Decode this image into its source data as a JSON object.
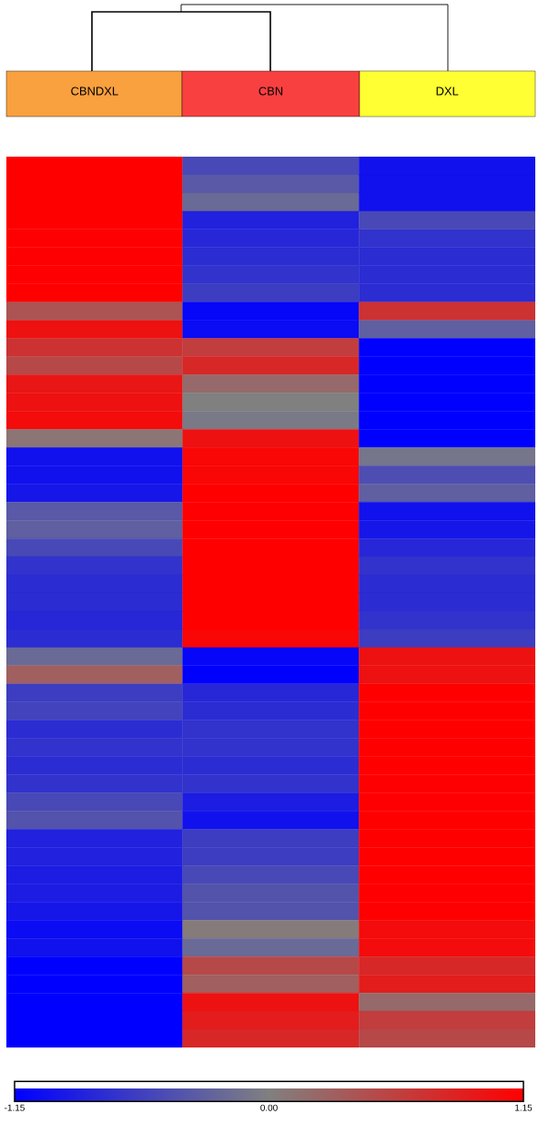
{
  "chart_data": {
    "type": "heatmap",
    "categories": [
      "CBNDXL",
      "CBN",
      "DXL"
    ],
    "y_categories": [
      null,
      null,
      null,
      null,
      null,
      null,
      null,
      null,
      null,
      null,
      null,
      null,
      null,
      null,
      null,
      null,
      null,
      null,
      null,
      null,
      null,
      null,
      null,
      null,
      null,
      null,
      null,
      null,
      null,
      null,
      null,
      null,
      null,
      null,
      null,
      null,
      null,
      null,
      null,
      null,
      null,
      null,
      null,
      null,
      null,
      null,
      null,
      null,
      null
    ],
    "cells": [
      [
        1.15,
        -0.5,
        -1.0
      ],
      [
        1.15,
        -0.35,
        -1.0
      ],
      [
        1.15,
        -0.2,
        -1.0
      ],
      [
        1.15,
        -0.85,
        -0.5
      ],
      [
        1.15,
        -0.8,
        -0.7
      ],
      [
        1.15,
        -0.75,
        -0.75
      ],
      [
        1.15,
        -0.7,
        -0.75
      ],
      [
        1.15,
        -0.6,
        -0.75
      ],
      [
        0.4,
        -1.1,
        0.7
      ],
      [
        1.0,
        -1.05,
        -0.3
      ],
      [
        0.7,
        0.6,
        -1.15
      ],
      [
        0.5,
        0.8,
        -1.15
      ],
      [
        0.95,
        0.2,
        -1.15
      ],
      [
        1.0,
        0.0,
        -1.15
      ],
      [
        1.05,
        -0.05,
        -1.15
      ],
      [
        0.1,
        1.0,
        -1.15
      ],
      [
        -1.0,
        1.1,
        -0.1
      ],
      [
        -1.0,
        1.1,
        -0.45
      ],
      [
        -0.95,
        1.15,
        -0.3
      ],
      [
        -0.35,
        1.15,
        -1.0
      ],
      [
        -0.3,
        1.15,
        -0.95
      ],
      [
        -0.5,
        1.15,
        -0.8
      ],
      [
        -0.7,
        1.15,
        -0.7
      ],
      [
        -0.75,
        1.15,
        -0.75
      ],
      [
        -0.75,
        1.15,
        -0.75
      ],
      [
        -0.8,
        1.15,
        -0.7
      ],
      [
        -0.75,
        1.1,
        -0.6
      ],
      [
        -0.2,
        -1.1,
        1.0
      ],
      [
        0.3,
        -1.15,
        1.0
      ],
      [
        -0.6,
        -0.8,
        1.15
      ],
      [
        -0.55,
        -0.75,
        1.15
      ],
      [
        -0.75,
        -0.7,
        1.15
      ],
      [
        -0.7,
        -0.7,
        1.15
      ],
      [
        -0.75,
        -0.75,
        1.15
      ],
      [
        -0.7,
        -0.7,
        1.15
      ],
      [
        -0.5,
        -0.9,
        1.15
      ],
      [
        -0.4,
        -1.0,
        1.15
      ],
      [
        -0.85,
        -0.6,
        1.15
      ],
      [
        -0.85,
        -0.6,
        1.15
      ],
      [
        -0.9,
        -0.5,
        1.15
      ],
      [
        -0.9,
        -0.4,
        1.15
      ],
      [
        -0.95,
        -0.4,
        1.15
      ],
      [
        -1.05,
        0.05,
        1.05
      ],
      [
        -1.0,
        -0.2,
        1.05
      ],
      [
        -1.15,
        0.5,
        0.8
      ],
      [
        -1.15,
        0.3,
        0.9
      ],
      [
        -1.15,
        1.0,
        0.2
      ],
      [
        -1.15,
        0.9,
        0.6
      ],
      [
        -1.15,
        0.8,
        0.5
      ]
    ],
    "clim": [
      -1.15,
      1.15
    ],
    "cticks": [
      -1.15,
      {
        "value": 0,
        "label": "0.00"
      },
      1.15
    ]
  }
}
